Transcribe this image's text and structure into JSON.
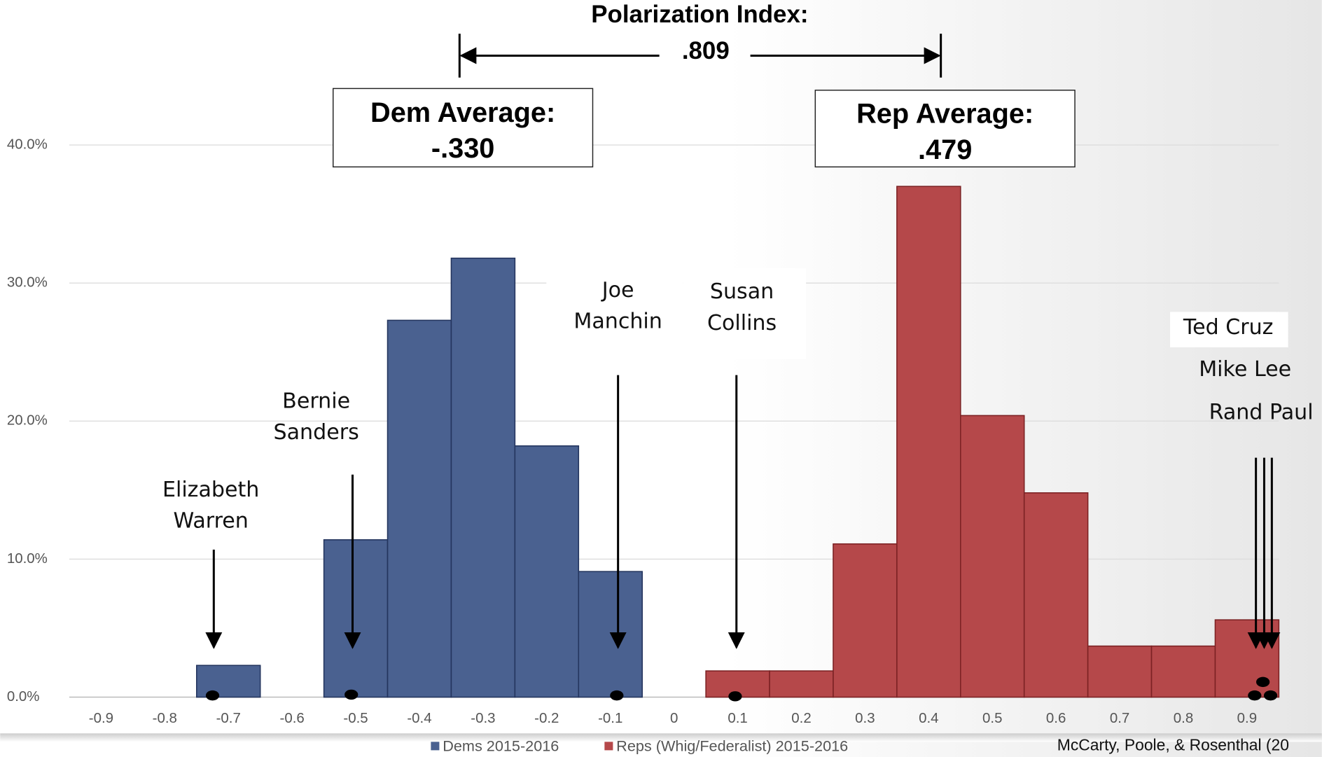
{
  "chart_data": {
    "type": "bar",
    "x": [
      -0.9,
      -0.8,
      -0.7,
      -0.6,
      -0.5,
      -0.4,
      -0.3,
      -0.2,
      -0.1,
      0,
      0.1,
      0.2,
      0.3,
      0.4,
      0.5,
      0.6,
      0.7,
      0.8,
      0.9
    ],
    "xlim": [
      -0.95,
      0.95
    ],
    "ylim": [
      0,
      40
    ],
    "yticks": [
      {
        "value": 0,
        "label": "0.0%"
      },
      {
        "value": 10,
        "label": "10.0%"
      },
      {
        "value": 20,
        "label": "20.0%"
      },
      {
        "value": 30,
        "label": "30.0%"
      },
      {
        "value": 40,
        "label": "40.0%"
      }
    ],
    "grid": true,
    "series": [
      {
        "name": "Dems 2015-2016",
        "color": "#4a6190",
        "values": [
          null,
          null,
          2.3,
          null,
          11.4,
          27.3,
          31.8,
          18.2,
          9.1,
          null,
          null,
          null,
          null,
          null,
          null,
          null,
          null,
          null,
          null
        ]
      },
      {
        "name": "Reps (Whig/Federalist) 2015-2016",
        "color": "#b5484a",
        "values": [
          null,
          null,
          null,
          null,
          null,
          null,
          null,
          null,
          null,
          null,
          1.9,
          1.9,
          11.1,
          37.0,
          20.4,
          14.8,
          3.7,
          3.7,
          5.6
        ]
      }
    ],
    "title": "Polarization Index:",
    "polarization_index": ".809",
    "dem_average": {
      "label": "Dem Average:",
      "value_label": "-.330"
    },
    "rep_average": {
      "label": "Rep Average:",
      "value_label": ".479"
    },
    "senators": [
      {
        "lines": [
          "Elizabeth",
          "Warren"
        ],
        "x": -0.725
      },
      {
        "lines": [
          "Bernie",
          "Sanders"
        ],
        "x": -0.507
      },
      {
        "lines": [
          "Joe",
          "Manchin"
        ],
        "x": -0.09
      },
      {
        "lines": [
          "Susan",
          "Collins"
        ],
        "x": 0.096
      },
      {
        "lines": [
          "Ted Cruz"
        ],
        "x": 0.912
      },
      {
        "lines": [
          "Mike Lee"
        ],
        "x": 0.925
      },
      {
        "lines": [
          "Rand Paul"
        ],
        "x": 0.937
      }
    ],
    "source": "McCarty, Poole, & Rosenthal (20"
  }
}
